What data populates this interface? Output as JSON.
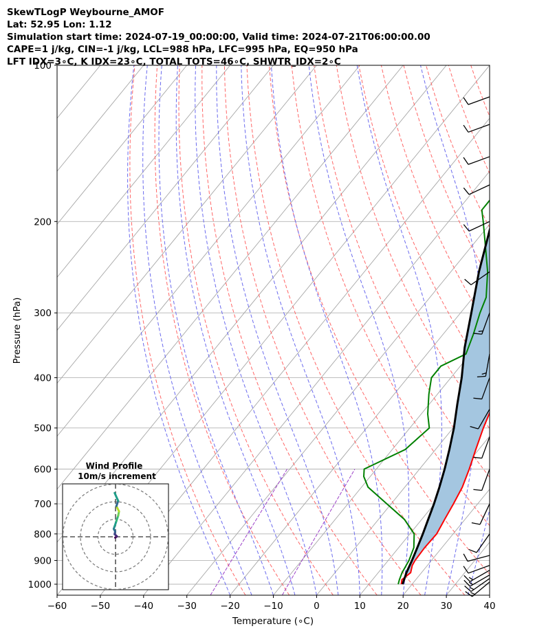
{
  "header": {
    "line1": "SkewTLogP Weybourne_AMOF",
    "line2": "Lat: 52.95   Lon: 1.12",
    "line3": "Simulation start time: 2024-07-19_00:00:00, Valid time: 2024-07-21T06:00:00.00",
    "line4": "CAPE=1 j/kg, CIN=-1 j/kg, LCL=988 hPa, LFC=995 hPa, EQ=950 hPa",
    "line5": "LFT IDX=3∘C, K IDX=23∘C, TOTAL TOTS=46∘C, SHWTR_IDX=2∘C"
  },
  "colors": {
    "temperature": "#ff0000",
    "dewpoint": "#008000",
    "parcel": "#000000",
    "cape_fill": "#a4c6e0",
    "dry_adiabats": "#ff6666",
    "moist_adiabats": "#6a6aee",
    "mixing_ratio": "#9b3fc8",
    "isotherms": "#a6a6a6",
    "isobars": "#b4b4b4"
  },
  "chart_data": {
    "type": "line",
    "xlabel": "Temperature (∘C)",
    "ylabel": "Pressure (hPa)",
    "xlim": [
      -60,
      40
    ],
    "ylim": [
      1050,
      100
    ],
    "y_scale": "log",
    "grid": true,
    "x_ticks": [
      -60,
      -50,
      -40,
      -30,
      -20,
      -10,
      0,
      10,
      20,
      30,
      40
    ],
    "y_ticks": [
      100,
      200,
      300,
      400,
      500,
      600,
      700,
      800,
      900,
      1000
    ],
    "series": [
      {
        "name": "",
        "role": "temperature",
        "points": [
          [
            1000,
            17.5
          ],
          [
            980,
            16.8
          ],
          [
            950,
            17.5
          ],
          [
            920,
            16.5
          ],
          [
            900,
            16.2
          ],
          [
            850,
            16.0
          ],
          [
            800,
            16.2
          ],
          [
            750,
            15.3
          ],
          [
            700,
            14.4
          ],
          [
            650,
            13.3
          ],
          [
            600,
            11.5
          ],
          [
            550,
            9.3
          ],
          [
            500,
            7.0
          ],
          [
            450,
            4.8
          ],
          [
            400,
            0.5
          ],
          [
            350,
            -4.5
          ],
          [
            300,
            -12.0
          ],
          [
            250,
            -17.0
          ],
          [
            230,
            -15.8
          ],
          [
            210,
            -12.5
          ],
          [
            200,
            -11.5
          ],
          [
            180,
            -7.5
          ],
          [
            160,
            -3.5
          ],
          [
            150,
            -1.2
          ],
          [
            140,
            1.0
          ],
          [
            130,
            3.5
          ],
          [
            120,
            7.5
          ],
          [
            110,
            11.5
          ],
          [
            100,
            13.5
          ]
        ]
      },
      {
        "name": "",
        "role": "dewpoint",
        "points": [
          [
            1000,
            16.8
          ],
          [
            980,
            16.2
          ],
          [
            950,
            15.5
          ],
          [
            900,
            14.8
          ],
          [
            850,
            13.5
          ],
          [
            800,
            11.0
          ],
          [
            750,
            6.0
          ],
          [
            700,
            -1.0
          ],
          [
            650,
            -8.5
          ],
          [
            620,
            -11.5
          ],
          [
            600,
            -12.8
          ],
          [
            550,
            -7.0
          ],
          [
            500,
            -5.5
          ],
          [
            470,
            -8.5
          ],
          [
            430,
            -12.0
          ],
          [
            400,
            -14.5
          ],
          [
            380,
            -14.5
          ],
          [
            360,
            -11.0
          ],
          [
            330,
            -13.0
          ],
          [
            300,
            -15.5
          ],
          [
            280,
            -17.0
          ],
          [
            250,
            -21.5
          ],
          [
            220,
            -27.5
          ],
          [
            200,
            -32.0
          ],
          [
            190,
            -34.5
          ],
          [
            180,
            -34.5
          ],
          [
            170,
            -34.5
          ],
          [
            160,
            -33.5
          ],
          [
            140,
            -33.5
          ],
          [
            120,
            -32.0
          ],
          [
            100,
            -28.0
          ]
        ]
      },
      {
        "name": "",
        "role": "parcel",
        "points": [
          [
            1000,
            17.8
          ],
          [
            980,
            17.3
          ],
          [
            950,
            16.5
          ],
          [
            900,
            15.5
          ],
          [
            850,
            14.3
          ],
          [
            800,
            13.0
          ],
          [
            750,
            11.5
          ],
          [
            700,
            9.9
          ],
          [
            650,
            8.0
          ],
          [
            600,
            5.8
          ],
          [
            550,
            3.2
          ],
          [
            500,
            0.2
          ],
          [
            450,
            -3.5
          ],
          [
            400,
            -7.5
          ],
          [
            350,
            -12.5
          ],
          [
            300,
            -17.5
          ],
          [
            250,
            -23.5
          ],
          [
            200,
            -30.0
          ],
          [
            180,
            -33.0
          ],
          [
            160,
            -36.0
          ],
          [
            150,
            -37.5
          ],
          [
            130,
            -40.5
          ],
          [
            120,
            -42.5
          ],
          [
            110,
            -44.5
          ],
          [
            100,
            -46.5
          ]
        ]
      }
    ],
    "wind_barbs": [
      {
        "p": 990,
        "speed_kt": 15,
        "dir": 230
      },
      {
        "p": 975,
        "speed_kt": 15,
        "dir": 235
      },
      {
        "p": 960,
        "speed_kt": 15,
        "dir": 240
      },
      {
        "p": 940,
        "speed_kt": 15,
        "dir": 240
      },
      {
        "p": 920,
        "speed_kt": 10,
        "dir": 250
      },
      {
        "p": 880,
        "speed_kt": 10,
        "dir": 255
      },
      {
        "p": 800,
        "speed_kt": 10,
        "dir": 215
      },
      {
        "p": 700,
        "speed_kt": 10,
        "dir": 205
      },
      {
        "p": 600,
        "speed_kt": 10,
        "dir": 200
      },
      {
        "p": 520,
        "speed_kt": 10,
        "dir": 200
      },
      {
        "p": 460,
        "speed_kt": 10,
        "dir": 210
      },
      {
        "p": 400,
        "speed_kt": 10,
        "dir": 200
      },
      {
        "p": 360,
        "speed_kt": 15,
        "dir": 190
      },
      {
        "p": 300,
        "speed_kt": 15,
        "dir": 200
      },
      {
        "p": 250,
        "speed_kt": 10,
        "dir": 235
      },
      {
        "p": 200,
        "speed_kt": 10,
        "dir": 245
      },
      {
        "p": 170,
        "speed_kt": 10,
        "dir": 245
      },
      {
        "p": 150,
        "speed_kt": 10,
        "dir": 250
      },
      {
        "p": 130,
        "speed_kt": 10,
        "dir": 250
      },
      {
        "p": 115,
        "speed_kt": 10,
        "dir": 250
      }
    ],
    "hodograph": {
      "title": "Wind Profile",
      "subtitle": "10m/s increment",
      "ring_step_ms": 10,
      "rings": 3,
      "points": [
        [
          -0.2,
          -0.5
        ],
        [
          0.8,
          0.2
        ],
        [
          -0.5,
          1.5
        ],
        [
          -0.2,
          3.0
        ],
        [
          -1.0,
          4.5
        ],
        [
          -0.5,
          6.0
        ],
        [
          0.5,
          9.0
        ],
        [
          1.5,
          12.0
        ],
        [
          2.0,
          14.5
        ],
        [
          0.5,
          17.5
        ],
        [
          1.5,
          20.5
        ],
        [
          -0.5,
          25.0
        ]
      ]
    }
  }
}
